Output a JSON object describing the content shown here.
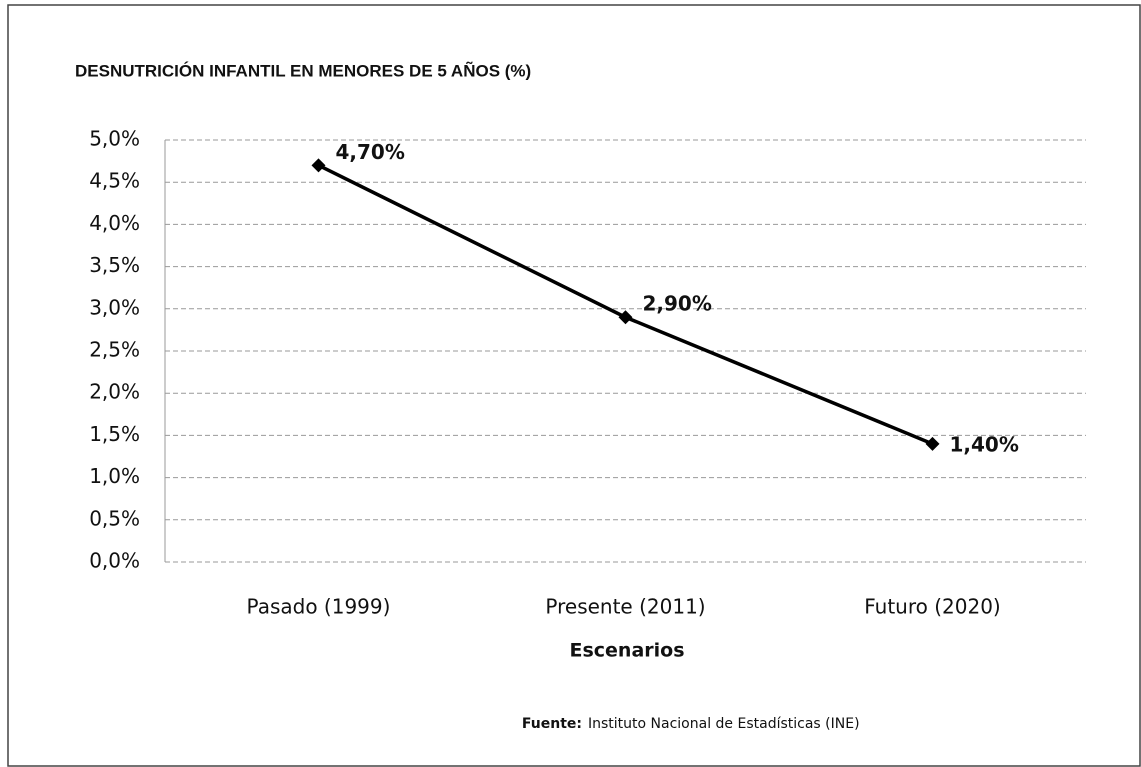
{
  "chart_data": {
    "type": "line",
    "title": "DESNUTRICIÓN INFANTIL EN MENORES DE 5 AÑOS (%)",
    "x_label": "Escenarios",
    "source_label": "Fuente:",
    "source_text": "Instituto Nacional de Estadísticas (INE)",
    "categories": [
      "Pasado (1999)",
      "Presente (2011)",
      "Futuro (2020)"
    ],
    "series": [
      {
        "name": "Desnutrición",
        "color": "#000000",
        "values": [
          4.7,
          2.9,
          1.4
        ],
        "value_labels": [
          "4,70%",
          "2,90%",
          "1,40%"
        ]
      }
    ],
    "ylim": [
      0,
      5
    ],
    "yticks": [
      {
        "value": 0,
        "label": "0,0%"
      },
      {
        "value": 0.5,
        "label": "0,5%"
      },
      {
        "value": 1,
        "label": "1,0%"
      },
      {
        "value": 1.5,
        "label": "1,5%"
      },
      {
        "value": 2,
        "label": "2,0%"
      },
      {
        "value": 2.5,
        "label": "2,5%"
      },
      {
        "value": 3,
        "label": "3,0%"
      },
      {
        "value": 3.5,
        "label": "3,5%"
      },
      {
        "value": 4,
        "label": "4,0%"
      },
      {
        "value": 4.5,
        "label": "4,5%"
      },
      {
        "value": 5,
        "label": "5,0%"
      }
    ],
    "grid": true
  }
}
